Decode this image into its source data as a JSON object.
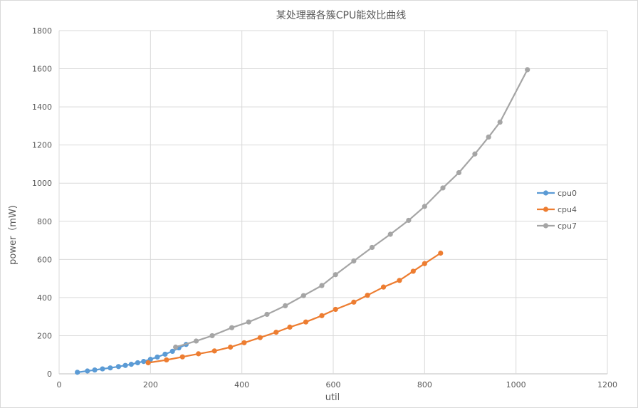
{
  "chart_data": {
    "type": "line",
    "title": "某处理器各簇CPU能效比曲线",
    "xlabel": "util",
    "ylabel": "power（mW)",
    "xlim": [
      0,
      1200
    ],
    "ylim": [
      0,
      1800
    ],
    "xticks": [
      0,
      200,
      400,
      600,
      800,
      1000,
      1200
    ],
    "yticks": [
      0,
      200,
      400,
      600,
      800,
      1000,
      1200,
      1400,
      1600,
      1800
    ],
    "grid": true,
    "legend_position": "right",
    "series": [
      {
        "name": "cpu0",
        "color": "#5b9bd5",
        "points": [
          [
            40,
            8
          ],
          [
            62,
            15
          ],
          [
            78,
            20
          ],
          [
            95,
            26
          ],
          [
            112,
            31
          ],
          [
            130,
            38
          ],
          [
            145,
            44
          ],
          [
            158,
            50
          ],
          [
            172,
            58
          ],
          [
            185,
            65
          ],
          [
            200,
            76
          ],
          [
            215,
            88
          ],
          [
            232,
            103
          ],
          [
            248,
            118
          ],
          [
            262,
            136
          ],
          [
            278,
            154
          ]
        ]
      },
      {
        "name": "cpu4",
        "color": "#ed7d31",
        "points": [
          [
            195,
            58
          ],
          [
            235,
            73
          ],
          [
            270,
            89
          ],
          [
            305,
            105
          ],
          [
            340,
            120
          ],
          [
            375,
            140
          ],
          [
            405,
            163
          ],
          [
            440,
            190
          ],
          [
            475,
            218
          ],
          [
            505,
            245
          ],
          [
            540,
            272
          ],
          [
            575,
            305
          ],
          [
            605,
            338
          ],
          [
            645,
            376
          ],
          [
            675,
            412
          ],
          [
            710,
            455
          ],
          [
            745,
            490
          ],
          [
            775,
            538
          ],
          [
            800,
            578
          ],
          [
            835,
            633
          ]
        ]
      },
      {
        "name": "cpu7",
        "color": "#a5a5a5",
        "points": [
          [
            255,
            140
          ],
          [
            300,
            172
          ],
          [
            335,
            200
          ],
          [
            378,
            242
          ],
          [
            415,
            272
          ],
          [
            455,
            312
          ],
          [
            495,
            357
          ],
          [
            535,
            410
          ],
          [
            575,
            463
          ],
          [
            605,
            520
          ],
          [
            645,
            592
          ],
          [
            685,
            663
          ],
          [
            725,
            732
          ],
          [
            765,
            805
          ],
          [
            800,
            878
          ],
          [
            840,
            975
          ],
          [
            875,
            1055
          ],
          [
            910,
            1153
          ],
          [
            940,
            1242
          ],
          [
            965,
            1320
          ],
          [
            1025,
            1595
          ]
        ]
      }
    ]
  }
}
